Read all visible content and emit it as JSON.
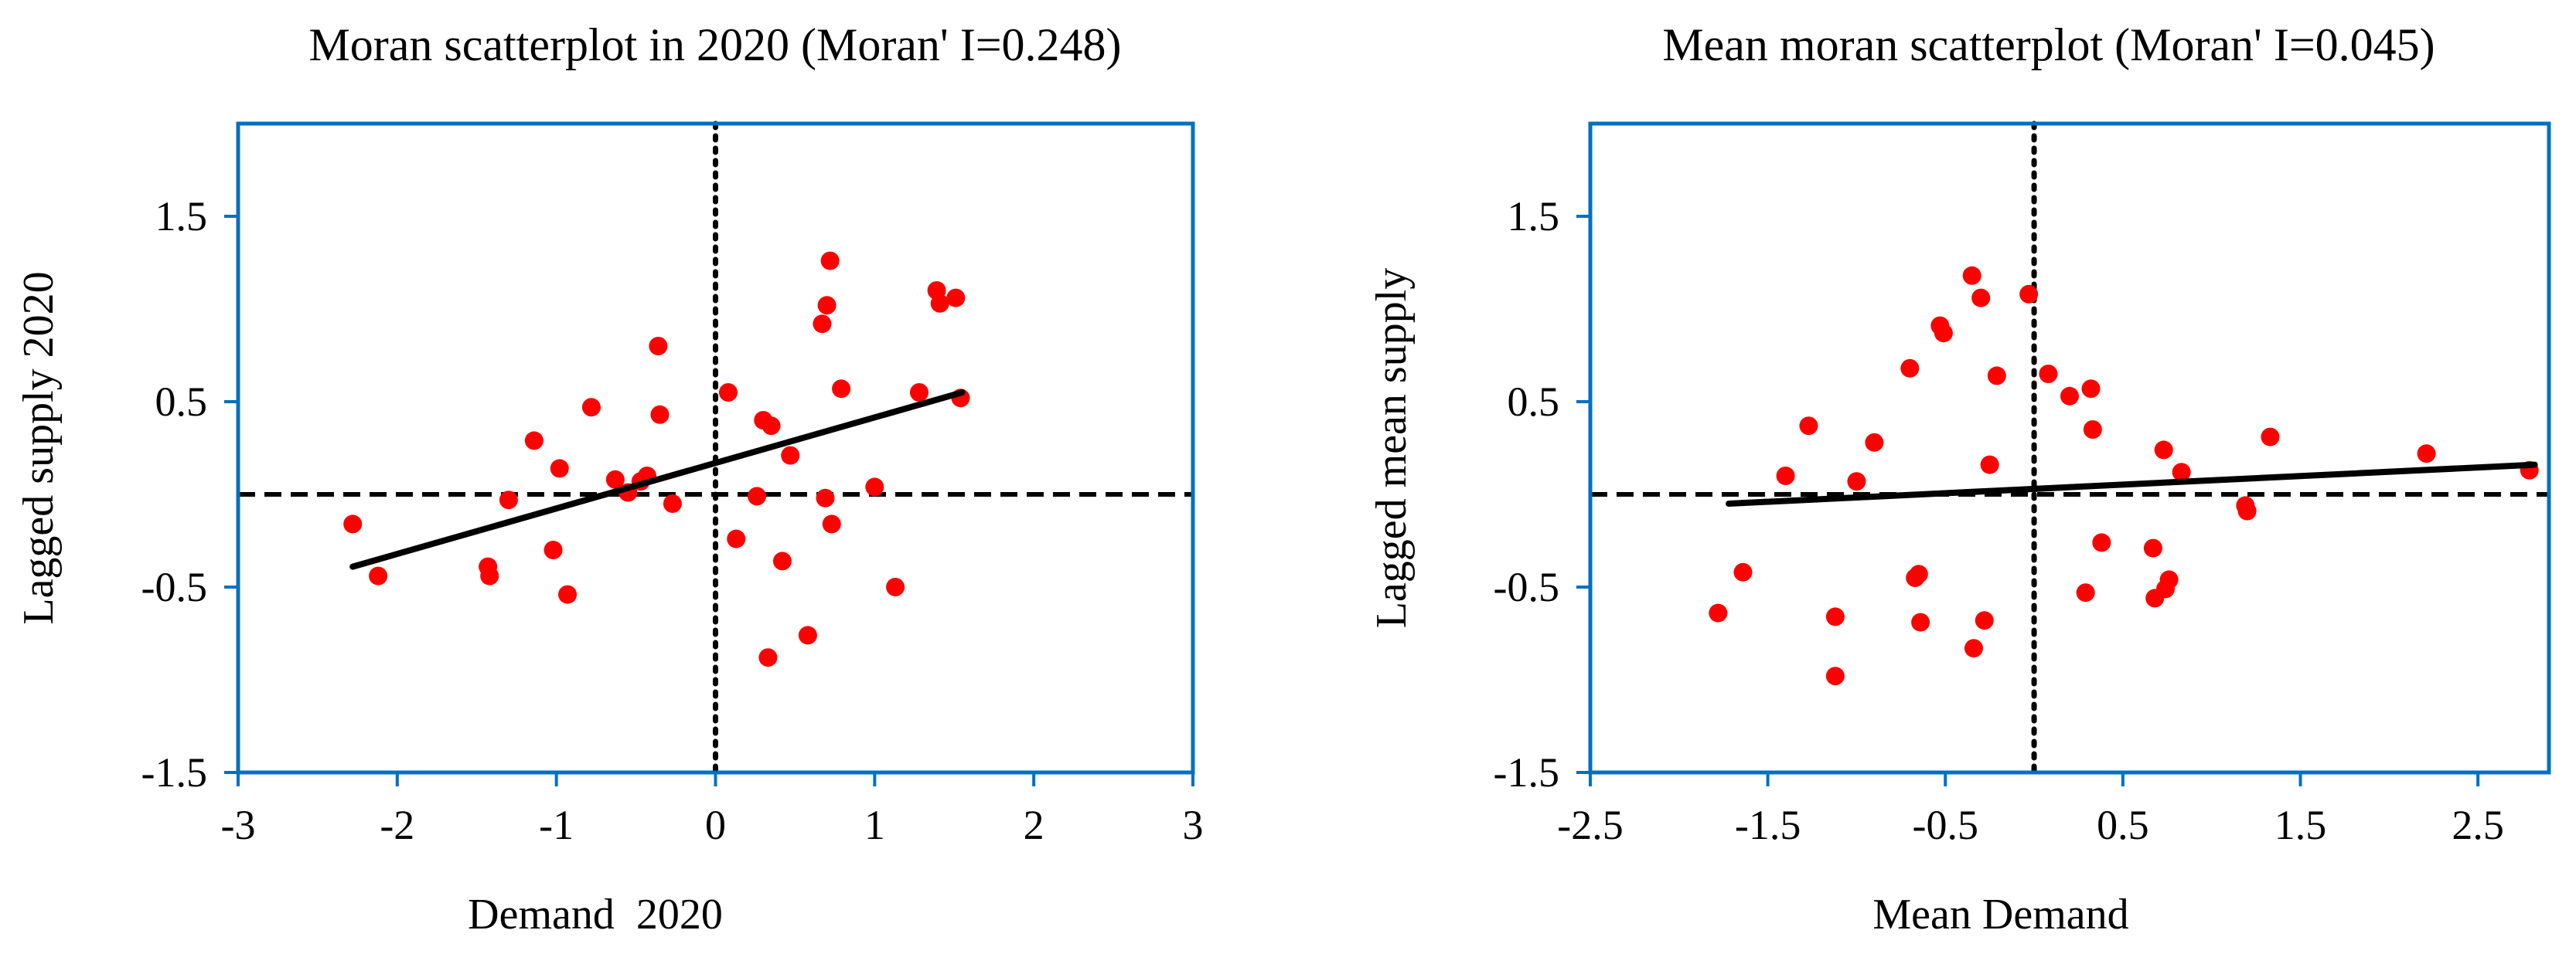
{
  "chart_data": [
    {
      "type": "scatter",
      "title": "Moran scatterplot in 2020 (Moran' I=0.248)",
      "xlabel": "Demand  2020",
      "ylabel": "Lagged supply 2020",
      "xlim": [
        -3,
        3
      ],
      "ylim": [
        -1.5,
        2.0
      ],
      "xticks": [
        -3,
        -2,
        -1,
        0,
        1,
        2,
        3
      ],
      "yticks": [
        -1.5,
        -0.5,
        0.5,
        1.5
      ],
      "grid": false,
      "legend": "none",
      "colors": {
        "points": "#ff0000",
        "frame": "#0070c0",
        "line": "#000000"
      },
      "reference_lines": {
        "vertical_x": 0,
        "horizontal_y": 0
      },
      "fit_line": {
        "x": [
          -2.28,
          1.55
        ],
        "y": [
          -0.39,
          0.55
        ]
      },
      "points": [
        [
          -2.28,
          -0.16
        ],
        [
          -2.12,
          -0.44
        ],
        [
          -1.43,
          -0.39
        ],
        [
          -1.42,
          -0.44
        ],
        [
          -1.3,
          -0.03
        ],
        [
          -1.14,
          0.29
        ],
        [
          -1.02,
          -0.3
        ],
        [
          -0.98,
          0.14
        ],
        [
          -0.93,
          -0.54
        ],
        [
          -0.78,
          0.47
        ],
        [
          -0.63,
          0.08
        ],
        [
          -0.55,
          0.01
        ],
        [
          -0.47,
          0.07
        ],
        [
          -0.43,
          0.1
        ],
        [
          -0.36,
          0.8
        ],
        [
          -0.35,
          0.43
        ],
        [
          -0.27,
          -0.05
        ],
        [
          0.08,
          0.55
        ],
        [
          0.13,
          -0.24
        ],
        [
          0.26,
          -0.01
        ],
        [
          0.3,
          0.4
        ],
        [
          0.35,
          0.37
        ],
        [
          0.33,
          -0.88
        ],
        [
          0.42,
          -0.36
        ],
        [
          0.47,
          0.21
        ],
        [
          0.58,
          -0.76
        ],
        [
          0.67,
          0.92
        ],
        [
          0.7,
          1.02
        ],
        [
          0.72,
          1.26
        ],
        [
          0.69,
          -0.02
        ],
        [
          0.73,
          -0.16
        ],
        [
          0.79,
          0.57
        ],
        [
          1.0,
          0.04
        ],
        [
          1.13,
          -0.5
        ],
        [
          1.28,
          0.55
        ],
        [
          1.39,
          1.1
        ],
        [
          1.41,
          1.03
        ],
        [
          1.51,
          1.06
        ],
        [
          1.54,
          0.52
        ]
      ]
    },
    {
      "type": "scatter",
      "title": "Mean moran scatterplot (Moran' I=0.045)",
      "xlabel": "Mean Demand",
      "ylabel": "Lagged mean supply",
      "xlim": [
        -2.5,
        2.9
      ],
      "ylim": [
        -1.5,
        2.0
      ],
      "xticks": [
        -2.5,
        -1.5,
        -0.5,
        0.5,
        1.5,
        2.5
      ],
      "yticks": [
        -1.5,
        -0.5,
        0.5,
        1.5
      ],
      "grid": false,
      "legend": "none",
      "colors": {
        "points": "#ff0000",
        "frame": "#0070c0",
        "line": "#000000"
      },
      "reference_lines": {
        "vertical_x": 0,
        "horizontal_y": 0
      },
      "fit_line": {
        "x": [
          -1.72,
          2.82
        ],
        "y": [
          -0.05,
          0.16
        ]
      },
      "points": [
        [
          -1.78,
          -0.64
        ],
        [
          -1.64,
          -0.42
        ],
        [
          -1.4,
          0.1
        ],
        [
          -1.27,
          0.37
        ],
        [
          -1.12,
          -0.66
        ],
        [
          -1.12,
          -0.98
        ],
        [
          -1.0,
          0.07
        ],
        [
          -0.9,
          0.28
        ],
        [
          -0.7,
          0.68
        ],
        [
          -0.67,
          -0.45
        ],
        [
          -0.65,
          -0.43
        ],
        [
          -0.64,
          -0.69
        ],
        [
          -0.53,
          0.91
        ],
        [
          -0.51,
          0.87
        ],
        [
          -0.35,
          1.18
        ],
        [
          -0.34,
          -0.83
        ],
        [
          -0.3,
          1.06
        ],
        [
          -0.28,
          -0.68
        ],
        [
          -0.25,
          0.16
        ],
        [
          -0.21,
          0.64
        ],
        [
          -0.03,
          1.08
        ],
        [
          0.08,
          0.65
        ],
        [
          0.2,
          0.53
        ],
        [
          0.29,
          -0.53
        ],
        [
          0.32,
          0.57
        ],
        [
          0.33,
          0.35
        ],
        [
          0.38,
          -0.26
        ],
        [
          0.67,
          -0.29
        ],
        [
          0.68,
          -0.56
        ],
        [
          0.73,
          0.24
        ],
        [
          0.74,
          -0.51
        ],
        [
          0.76,
          -0.46
        ],
        [
          0.83,
          0.12
        ],
        [
          1.19,
          -0.06
        ],
        [
          1.2,
          -0.09
        ],
        [
          1.33,
          0.31
        ],
        [
          2.21,
          0.22
        ],
        [
          2.79,
          0.13
        ]
      ]
    }
  ]
}
